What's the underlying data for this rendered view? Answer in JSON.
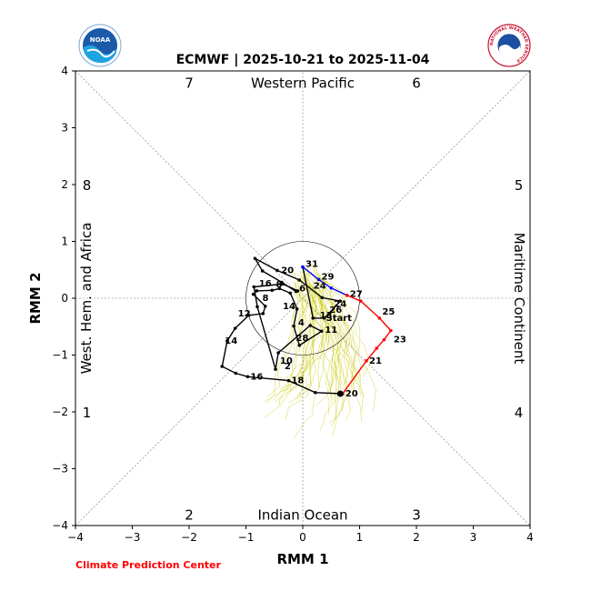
{
  "title": "ECMWF | 2025-10-21 to 2025-11-04",
  "credit": "Climate Prediction Center",
  "logos": {
    "left": "NOAA",
    "right": "NATIONAL WEATHER SERVICE"
  },
  "colors": {
    "observed": "#000000",
    "forecast_mean_a": "#0000ff",
    "forecast_mean_b": "#ff0000",
    "ensemble": "#c8c800",
    "credit": "#ff0000"
  },
  "chart_data": {
    "type": "line",
    "title": "ECMWF | 2025-10-21 to 2025-11-04",
    "xlabel": "RMM 1",
    "ylabel": "RMM 2",
    "xlim": [
      -4,
      4
    ],
    "ylim": [
      -4,
      4
    ],
    "xticks": [
      "−4",
      "−3",
      "−2",
      "−1",
      "0",
      "1",
      "2",
      "3",
      "4"
    ],
    "yticks": [
      "−4",
      "−3",
      "−2",
      "−1",
      "0",
      "1",
      "2",
      "3",
      "4"
    ],
    "phases": [
      {
        "label": "1",
        "x": -3.8,
        "y": -2.0
      },
      {
        "label": "2",
        "x": -2.0,
        "y": -3.8
      },
      {
        "label": "3",
        "x": 2.0,
        "y": -3.8
      },
      {
        "label": "4",
        "x": 3.8,
        "y": -2.0
      },
      {
        "label": "5",
        "x": 3.8,
        "y": 2.0
      },
      {
        "label": "6",
        "x": 2.0,
        "y": 3.8
      },
      {
        "label": "7",
        "x": -2.0,
        "y": 3.8
      },
      {
        "label": "8",
        "x": -3.8,
        "y": 2.0
      }
    ],
    "regions": [
      {
        "label": "Western Pacific",
        "x": 0,
        "y": 3.8,
        "rotate": 0
      },
      {
        "label": "Indian Ocean",
        "x": 0,
        "y": -3.8,
        "rotate": 0
      },
      {
        "label": "West. Hem. and Africa",
        "x": -3.8,
        "y": 0,
        "rotate": -90
      },
      {
        "label": "Maritime Continent",
        "x": 3.8,
        "y": 0,
        "rotate": 90
      }
    ],
    "series": [
      {
        "kind": "observed",
        "x": [
          0.7,
          0.22,
          -0.25,
          -0.97,
          -1.18,
          -1.42,
          -1.33,
          -1.19,
          -0.95,
          -0.7,
          -0.66,
          -0.87,
          -0.81,
          -0.54,
          -0.41,
          -0.22,
          -0.1,
          -0.16,
          -0.06,
          0.33,
          0.13,
          -0.43,
          -0.48,
          -0.8,
          -0.86,
          -0.35,
          -0.09,
          -0.12,
          -0.37,
          -0.71,
          -0.84,
          -0.45,
          -0.06,
          0.34,
          0.66,
          0.38,
          0.18,
          0.0
        ],
        "y": [
          -1.68,
          -1.66,
          -1.45,
          -1.38,
          -1.32,
          -1.2,
          -0.75,
          -0.53,
          -0.3,
          -0.27,
          -0.14,
          0.07,
          0.13,
          0.14,
          0.17,
          0.09,
          -0.19,
          -0.49,
          -0.83,
          -0.58,
          -0.48,
          -0.96,
          -1.25,
          -0.15,
          0.2,
          0.25,
          0.13,
          0.12,
          0.28,
          0.48,
          0.7,
          0.49,
          0.32,
          0.01,
          -0.05,
          -0.35,
          -0.35,
          0.55
        ],
        "labels": [
          {
            "t": "20",
            "x": 0.7,
            "y": -1.68
          },
          {
            "t": "18",
            "x": -0.25,
            "y": -1.45
          },
          {
            "t": "16",
            "x": -0.97,
            "y": -1.38
          },
          {
            "t": "14",
            "x": -1.42,
            "y": -0.75
          },
          {
            "t": "12",
            "x": -1.19,
            "y": -0.27
          },
          {
            "t": "10",
            "x": -0.45,
            "y": -1.1
          },
          {
            "t": "8",
            "x": -0.76,
            "y": 0.0
          },
          {
            "t": "16",
            "x": -0.82,
            "y": 0.26
          },
          {
            "t": "8",
            "x": -0.52,
            "y": 0.24
          },
          {
            "t": "14",
            "x": -0.4,
            "y": -0.14
          },
          {
            "t": "6",
            "x": -0.11,
            "y": 0.17
          },
          {
            "t": "4",
            "x": -0.13,
            "y": -0.43
          },
          {
            "t": "28",
            "x": -0.17,
            "y": -0.7
          },
          {
            "t": "2",
            "x": -0.37,
            "y": -1.2
          },
          {
            "t": "20",
            "x": -0.43,
            "y": 0.49
          },
          {
            "t": "11",
            "x": 0.34,
            "y": -0.56
          },
          {
            "t": "13",
            "x": 0.25,
            "y": -0.3
          }
        ]
      },
      {
        "kind": "forecast_mean_a",
        "x": [
          0.0,
          0.28,
          0.5,
          0.78
        ],
        "y": [
          0.55,
          0.33,
          0.18,
          0.05
        ],
        "labels": [
          {
            "t": "31",
            "x": 0.0,
            "y": 0.6
          },
          {
            "t": "29",
            "x": 0.28,
            "y": 0.38
          },
          {
            "t": "24",
            "x": 0.14,
            "y": 0.22
          },
          {
            "t": "27",
            "x": 0.78,
            "y": 0.07
          },
          {
            "t": "24",
            "x": 0.5,
            "y": -0.1
          }
        ]
      },
      {
        "kind": "forecast_mean_b",
        "x": [
          0.78,
          1.02,
          1.35,
          1.55,
          1.43,
          1.3,
          1.12,
          0.7
        ],
        "y": [
          0.05,
          -0.05,
          -0.35,
          -0.57,
          -0.73,
          -0.88,
          -1.1,
          -1.68
        ],
        "labels": [
          {
            "t": "25",
            "x": 1.35,
            "y": -0.24
          },
          {
            "t": "23",
            "x": 1.55,
            "y": -0.73
          },
          {
            "t": "21",
            "x": 1.12,
            "y": -1.1
          },
          {
            "t": "26",
            "x": 0.42,
            "y": -0.21
          },
          {
            "t": "Start",
            "x": 0.36,
            "y": -0.35
          }
        ]
      }
    ],
    "start_point": {
      "x": 0.66,
      "y": -1.68
    }
  }
}
